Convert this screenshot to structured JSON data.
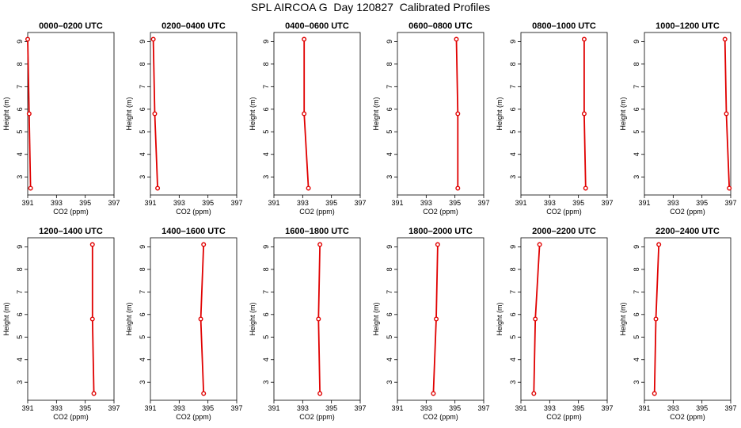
{
  "figure": {
    "title": "SPL AIRCOA G  Day 120827  Calibrated Profiles"
  },
  "colors": {
    "series": "#e00000",
    "axis": "#000000"
  },
  "chart_data": [
    {
      "type": "line",
      "title": "0000–0200 UTC",
      "xlabel": "CO2 (ppm)",
      "ylabel": "Height (m)",
      "xlim": [
        391,
        397
      ],
      "ylim": [
        2.2,
        9.4
      ],
      "xticks": [
        391,
        393,
        395,
        397
      ],
      "yticks": [
        3,
        4,
        5,
        6,
        7,
        8,
        9
      ],
      "x": [
        391.2,
        391.1,
        391.0
      ],
      "y": [
        2.5,
        5.8,
        9.1
      ],
      "grid": false
    },
    {
      "type": "line",
      "title": "0200–0400 UTC",
      "xlabel": "CO2 (ppm)",
      "ylabel": "Height (m)",
      "xlim": [
        391,
        397
      ],
      "ylim": [
        2.2,
        9.4
      ],
      "xticks": [
        391,
        393,
        395,
        397
      ],
      "yticks": [
        3,
        4,
        5,
        6,
        7,
        8,
        9
      ],
      "x": [
        391.5,
        391.3,
        391.2
      ],
      "y": [
        2.5,
        5.8,
        9.1
      ],
      "grid": false
    },
    {
      "type": "line",
      "title": "0400–0600 UTC",
      "xlabel": "CO2 (ppm)",
      "ylabel": "Height (m)",
      "xlim": [
        391,
        397
      ],
      "ylim": [
        2.2,
        9.4
      ],
      "xticks": [
        391,
        393,
        395,
        397
      ],
      "yticks": [
        3,
        4,
        5,
        6,
        7,
        8,
        9
      ],
      "x": [
        393.4,
        393.1,
        393.1
      ],
      "y": [
        2.5,
        5.8,
        9.1
      ],
      "grid": false
    },
    {
      "type": "line",
      "title": "0600–0800 UTC",
      "xlabel": "CO2 (ppm)",
      "ylabel": "Height (m)",
      "xlim": [
        391,
        397
      ],
      "ylim": [
        2.2,
        9.4
      ],
      "xticks": [
        391,
        393,
        395,
        397
      ],
      "yticks": [
        3,
        4,
        5,
        6,
        7,
        8,
        9
      ],
      "x": [
        395.2,
        395.2,
        395.1
      ],
      "y": [
        2.5,
        5.8,
        9.1
      ],
      "grid": false
    },
    {
      "type": "line",
      "title": "0800–1000 UTC",
      "xlabel": "CO2 (ppm)",
      "ylabel": "Height (m)",
      "xlim": [
        391,
        397
      ],
      "ylim": [
        2.2,
        9.4
      ],
      "xticks": [
        391,
        393,
        395,
        397
      ],
      "yticks": [
        3,
        4,
        5,
        6,
        7,
        8,
        9
      ],
      "x": [
        395.5,
        395.4,
        395.4
      ],
      "y": [
        2.5,
        5.8,
        9.1
      ],
      "grid": false
    },
    {
      "type": "line",
      "title": "1000–1200 UTC",
      "xlabel": "CO2 (ppm)",
      "ylabel": "Height (m)",
      "xlim": [
        391,
        397
      ],
      "ylim": [
        2.2,
        9.4
      ],
      "xticks": [
        391,
        393,
        395,
        397
      ],
      "yticks": [
        3,
        4,
        5,
        6,
        7,
        8,
        9
      ],
      "x": [
        396.9,
        396.7,
        396.6
      ],
      "y": [
        2.5,
        5.8,
        9.1
      ],
      "grid": false
    },
    {
      "type": "line",
      "title": "1200–1400 UTC",
      "xlabel": "CO2 (ppm)",
      "ylabel": "Height (m)",
      "xlim": [
        391,
        397
      ],
      "ylim": [
        2.2,
        9.4
      ],
      "xticks": [
        391,
        393,
        395,
        397
      ],
      "yticks": [
        3,
        4,
        5,
        6,
        7,
        8,
        9
      ],
      "x": [
        395.6,
        395.5,
        395.5
      ],
      "y": [
        2.5,
        5.8,
        9.1
      ],
      "grid": false
    },
    {
      "type": "line",
      "title": "1400–1600 UTC",
      "xlabel": "CO2 (ppm)",
      "ylabel": "Height (m)",
      "xlim": [
        391,
        397
      ],
      "ylim": [
        2.2,
        9.4
      ],
      "xticks": [
        391,
        393,
        395,
        397
      ],
      "yticks": [
        3,
        4,
        5,
        6,
        7,
        8,
        9
      ],
      "x": [
        394.7,
        394.5,
        394.7
      ],
      "y": [
        2.5,
        5.8,
        9.1
      ],
      "grid": false
    },
    {
      "type": "line",
      "title": "1600–1800 UTC",
      "xlabel": "CO2 (ppm)",
      "ylabel": "Height (m)",
      "xlim": [
        391,
        397
      ],
      "ylim": [
        2.2,
        9.4
      ],
      "xticks": [
        391,
        393,
        395,
        397
      ],
      "yticks": [
        3,
        4,
        5,
        6,
        7,
        8,
        9
      ],
      "x": [
        394.2,
        394.1,
        394.2
      ],
      "y": [
        2.5,
        5.8,
        9.1
      ],
      "grid": false
    },
    {
      "type": "line",
      "title": "1800–2000 UTC",
      "xlabel": "CO2 (ppm)",
      "ylabel": "Height (m)",
      "xlim": [
        391,
        397
      ],
      "ylim": [
        2.2,
        9.4
      ],
      "xticks": [
        391,
        393,
        395,
        397
      ],
      "yticks": [
        3,
        4,
        5,
        6,
        7,
        8,
        9
      ],
      "x": [
        393.5,
        393.7,
        393.8
      ],
      "y": [
        2.5,
        5.8,
        9.1
      ],
      "grid": false
    },
    {
      "type": "line",
      "title": "2000–2200 UTC",
      "xlabel": "CO2 (ppm)",
      "ylabel": "Height (m)",
      "xlim": [
        391,
        397
      ],
      "ylim": [
        2.2,
        9.4
      ],
      "xticks": [
        391,
        393,
        395,
        397
      ],
      "yticks": [
        3,
        4,
        5,
        6,
        7,
        8,
        9
      ],
      "x": [
        391.9,
        392.0,
        392.3
      ],
      "y": [
        2.5,
        5.8,
        9.1
      ],
      "grid": false
    },
    {
      "type": "line",
      "title": "2200–2400 UTC",
      "xlabel": "CO2 (ppm)",
      "ylabel": "Height (m)",
      "xlim": [
        391,
        397
      ],
      "ylim": [
        2.2,
        9.4
      ],
      "xticks": [
        391,
        393,
        395,
        397
      ],
      "yticks": [
        3,
        4,
        5,
        6,
        7,
        8,
        9
      ],
      "x": [
        391.7,
        391.8,
        392.0
      ],
      "y": [
        2.5,
        5.8,
        9.1
      ],
      "grid": false
    }
  ]
}
